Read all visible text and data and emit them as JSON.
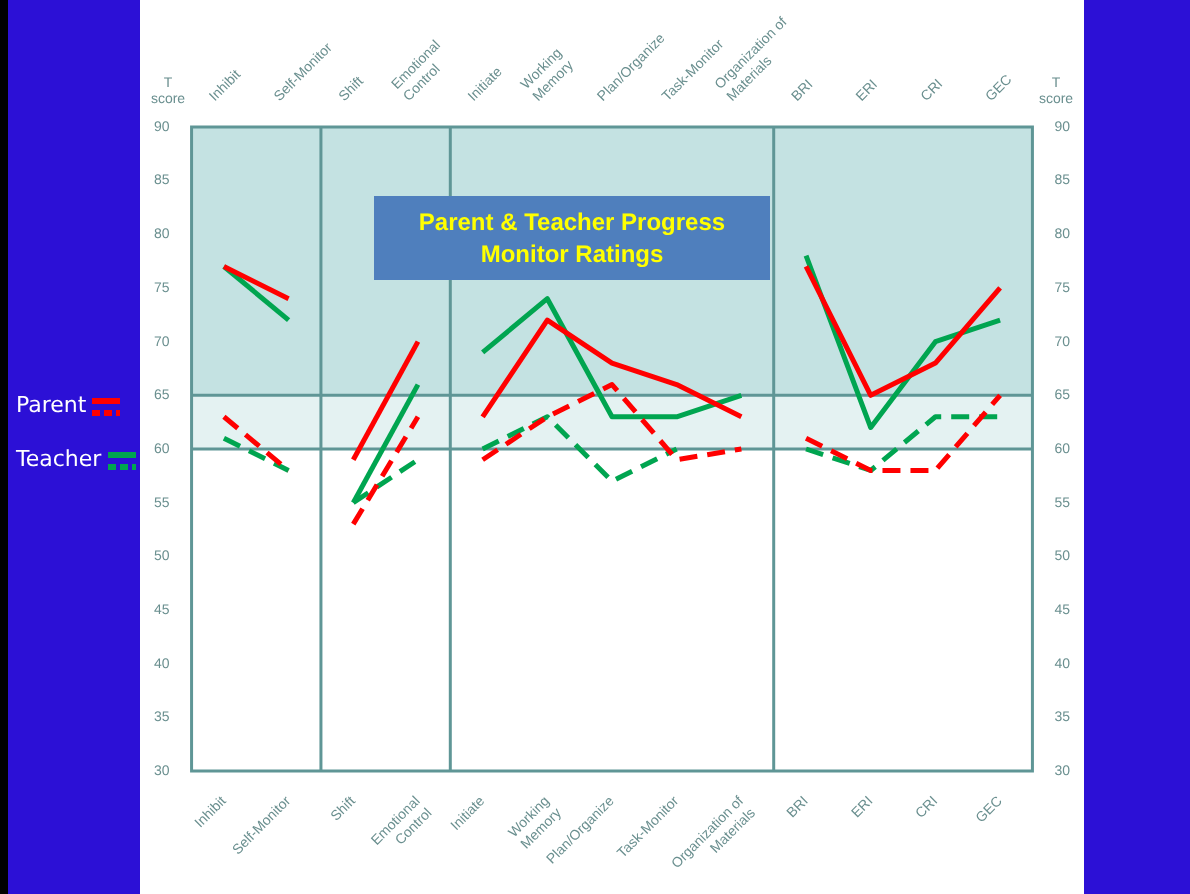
{
  "chart_data": {
    "type": "line",
    "title": "Parent & Teacher Progress Monitor Ratings",
    "ylabel": "T score",
    "y2label": "T score",
    "categories": [
      "Inhibit",
      "Self-Monitor",
      "Shift",
      "Emotional Control",
      "Initiate",
      "Working Memory",
      "Plan/Organize",
      "Task-Monitor",
      "Organization of Materials",
      "BRI",
      "ERI",
      "CRI",
      "GEC"
    ],
    "series": [
      {
        "name": "Parent",
        "color": "#ff0000",
        "line_style": "solid",
        "values": [
          77,
          74,
          59,
          70,
          63,
          72,
          68,
          66,
          63,
          77,
          65,
          68,
          75
        ]
      },
      {
        "color": "#ff0000",
        "line_style": "dashed",
        "values": [
          63,
          58,
          53,
          63,
          59,
          63,
          66,
          59,
          60,
          61,
          58,
          58,
          65
        ]
      },
      {
        "name": "Teacher",
        "color": "#00a550",
        "line_style": "solid",
        "values": [
          77,
          72,
          55,
          66,
          69,
          74,
          63,
          63,
          65,
          78,
          62,
          70,
          72
        ]
      },
      {
        "color": "#00a550",
        "line_style": "dashed",
        "values": [
          61,
          58,
          55,
          59,
          60,
          63,
          57,
          60,
          null,
          60,
          58,
          63,
          63
        ]
      }
    ],
    "ylim": [
      30,
      90
    ],
    "yticks": [
      30,
      35,
      40,
      45,
      50,
      55,
      60,
      65,
      70,
      75,
      80,
      85,
      90
    ],
    "y2lim": [
      30,
      90
    ],
    "y2ticks": [
      30,
      35,
      40,
      45,
      50,
      55,
      60,
      65,
      70,
      75,
      80,
      85,
      90
    ],
    "bands": [
      {
        "axis": "y",
        "from": 65,
        "to": 90,
        "color": "#c4e2e2"
      },
      {
        "axis": "y",
        "from": 60,
        "to": 65,
        "color": "#e4f2f2"
      }
    ],
    "ref_lines": [
      {
        "axis": "y",
        "value": 60,
        "color": "#5f9696"
      },
      {
        "axis": "y",
        "value": 65,
        "color": "#5f9696"
      }
    ],
    "grid": false,
    "marker": "none",
    "legend": "left"
  }
}
